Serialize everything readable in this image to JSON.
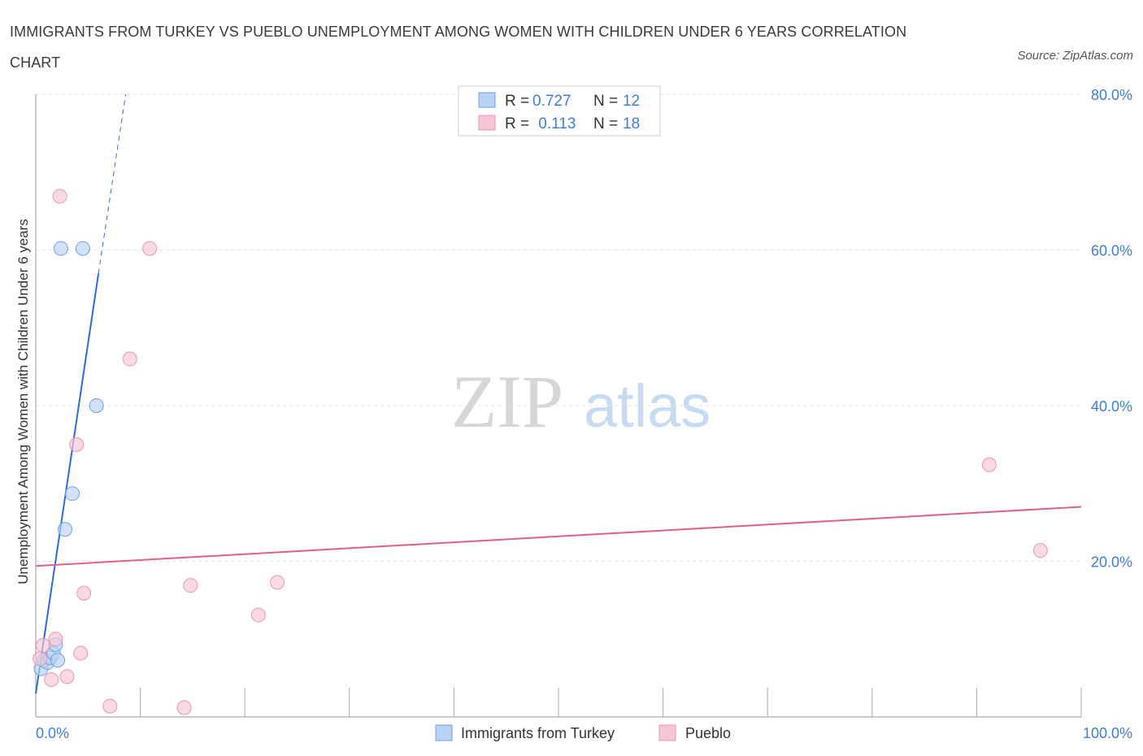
{
  "header": {
    "title": "IMMIGRANTS FROM TURKEY VS PUEBLO UNEMPLOYMENT AMONG WOMEN WITH CHILDREN UNDER 6 YEARS CORRELATION CHART",
    "source": "Source: ZipAtlas.com"
  },
  "watermark": {
    "zip": "ZIP",
    "atlas": "atlas"
  },
  "legend_stats": {
    "rows": [
      {
        "r_label": "R = ",
        "r_value": "0.727",
        "n_label": "N = ",
        "n_value": "12"
      },
      {
        "r_label": "R = ",
        "r_value": " 0.113",
        "n_label": "N = ",
        "n_value": "18"
      }
    ]
  },
  "chart_data": {
    "type": "scatter",
    "title": "IMMIGRANTS FROM TURKEY VS PUEBLO UNEMPLOYMENT AMONG WOMEN WITH CHILDREN UNDER 6 YEARS CORRELATION CHART",
    "xlabel": "",
    "ylabel": "Unemployment Among Women with Children Under 6 years",
    "xlim": [
      0,
      100
    ],
    "ylim": [
      0,
      80
    ],
    "x_tick_labels": [
      "0.0%",
      "100.0%"
    ],
    "y_ticks": [
      20,
      40,
      60,
      80
    ],
    "y_tick_labels": [
      "20.0%",
      "40.0%",
      "60.0%",
      "80.0%"
    ],
    "grid": true,
    "legend_position": "bottom",
    "series": [
      {
        "name": "Immigrants from Turkey",
        "color": "#6f9fe0",
        "fill": "#b9d2f5",
        "line_color": "#2a6fd0",
        "R": 0.727,
        "N": 12,
        "points": [
          {
            "x": 0.5,
            "y": 6.2
          },
          {
            "x": 0.8,
            "y": 7.3
          },
          {
            "x": 1.1,
            "y": 7.0
          },
          {
            "x": 1.4,
            "y": 7.6
          },
          {
            "x": 1.7,
            "y": 8.2
          },
          {
            "x": 1.9,
            "y": 9.3
          },
          {
            "x": 2.1,
            "y": 7.3
          },
          {
            "x": 2.4,
            "y": 60.2
          },
          {
            "x": 2.8,
            "y": 24.1
          },
          {
            "x": 3.5,
            "y": 28.7
          },
          {
            "x": 4.5,
            "y": 60.2
          },
          {
            "x": 5.8,
            "y": 40.0
          }
        ],
        "trend": {
          "x0": 0.0,
          "y0": 3.0,
          "x1": 6.0,
          "y1": 57.0,
          "dash_to_x": 8.6,
          "dash_to_y": 80.0
        }
      },
      {
        "name": "Pueblo",
        "color": "#e895b0",
        "fill": "#f6c6d6",
        "line_color": "#e0608d",
        "R": 0.113,
        "N": 18,
        "points": [
          {
            "x": 0.4,
            "y": 7.5
          },
          {
            "x": 0.7,
            "y": 9.2
          },
          {
            "x": 1.5,
            "y": 4.8
          },
          {
            "x": 1.9,
            "y": 10.0
          },
          {
            "x": 2.3,
            "y": 66.9
          },
          {
            "x": 3.0,
            "y": 5.2
          },
          {
            "x": 3.9,
            "y": 35.0
          },
          {
            "x": 4.3,
            "y": 8.2
          },
          {
            "x": 4.6,
            "y": 15.9
          },
          {
            "x": 7.1,
            "y": 1.4
          },
          {
            "x": 9.0,
            "y": 46.0
          },
          {
            "x": 10.9,
            "y": 60.2
          },
          {
            "x": 14.2,
            "y": 1.2
          },
          {
            "x": 14.8,
            "y": 16.9
          },
          {
            "x": 21.3,
            "y": 13.1
          },
          {
            "x": 23.1,
            "y": 17.3
          },
          {
            "x": 91.2,
            "y": 32.4
          },
          {
            "x": 96.1,
            "y": 21.4
          }
        ],
        "trend": {
          "x0": 0.0,
          "y0": 19.4,
          "x1": 100.0,
          "y1": 27.0
        }
      }
    ]
  }
}
